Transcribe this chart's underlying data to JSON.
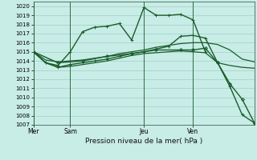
{
  "bg_color": "#c8ece6",
  "grid_color": "#a0d0c8",
  "line_color": "#1a5c2a",
  "title": "Pression niveau de la mer( hPa )",
  "ylim": [
    1007,
    1020.5
  ],
  "yticks": [
    1007,
    1008,
    1009,
    1010,
    1011,
    1012,
    1013,
    1014,
    1015,
    1016,
    1017,
    1018,
    1019,
    1020
  ],
  "day_labels": [
    "Mer",
    "Sam",
    "Jeu",
    "Ven"
  ],
  "day_positions": [
    0,
    3,
    9,
    13
  ],
  "xlim": [
    0,
    18
  ],
  "lines_data": [
    {
      "x": [
        0,
        1,
        2,
        3,
        4,
        5,
        6,
        7,
        8,
        9,
        10,
        11,
        12,
        13,
        14
      ],
      "y": [
        1015.0,
        1013.8,
        1013.5,
        1015.0,
        1017.2,
        1017.7,
        1017.8,
        1018.1,
        1016.3,
        1019.85,
        1019.0,
        1019.0,
        1019.1,
        1018.5,
        1015.0
      ],
      "lw": 1.0,
      "marker": "+",
      "ms": 3.5
    },
    {
      "x": [
        0,
        1,
        2,
        3,
        4,
        5,
        6,
        7,
        8,
        9,
        10,
        11,
        12,
        13,
        14,
        15,
        16,
        17,
        18
      ],
      "y": [
        1015.0,
        1014.1,
        1013.9,
        1014.0,
        1014.1,
        1014.3,
        1014.5,
        1014.8,
        1015.0,
        1015.2,
        1015.5,
        1015.7,
        1015.9,
        1016.0,
        1016.0,
        1015.8,
        1015.2,
        1014.2,
        1013.9
      ],
      "lw": 0.9,
      "marker": null,
      "ms": 0
    },
    {
      "x": [
        0,
        1,
        2,
        3,
        4,
        5,
        6,
        7,
        8,
        9,
        10,
        11,
        12,
        13,
        14,
        15,
        16,
        17,
        18
      ],
      "y": [
        1015.0,
        1013.8,
        1013.3,
        1013.4,
        1013.6,
        1013.8,
        1014.0,
        1014.3,
        1014.6,
        1014.8,
        1014.9,
        1015.0,
        1015.1,
        1015.0,
        1014.9,
        1013.8,
        1013.5,
        1013.3,
        1013.2
      ],
      "lw": 0.9,
      "marker": null,
      "ms": 0
    },
    {
      "x": [
        0,
        2,
        4,
        6,
        8,
        10,
        12,
        13,
        14,
        15,
        16,
        17,
        18
      ],
      "y": [
        1015.0,
        1013.8,
        1014.0,
        1014.5,
        1014.8,
        1015.2,
        1015.2,
        1015.2,
        1015.4,
        1013.8,
        1011.5,
        1009.8,
        1007.2
      ],
      "lw": 1.0,
      "marker": "D",
      "ms": 2.0
    },
    {
      "x": [
        0,
        1,
        2,
        3,
        4,
        5,
        6,
        7,
        8,
        9,
        10,
        11,
        12,
        13,
        14,
        15,
        16,
        17,
        18
      ],
      "y": [
        1015.0,
        1013.8,
        1013.3,
        1013.6,
        1013.8,
        1014.0,
        1014.2,
        1014.5,
        1014.8,
        1015.0,
        1015.3,
        1015.6,
        1016.7,
        1016.8,
        1016.5,
        1013.8,
        1011.2,
        1008.1,
        1007.2
      ],
      "lw": 1.0,
      "marker": "+",
      "ms": 3.5
    }
  ],
  "vlines": [
    0,
    3,
    9,
    13
  ],
  "figsize": [
    3.2,
    2.0
  ],
  "dpi": 100
}
